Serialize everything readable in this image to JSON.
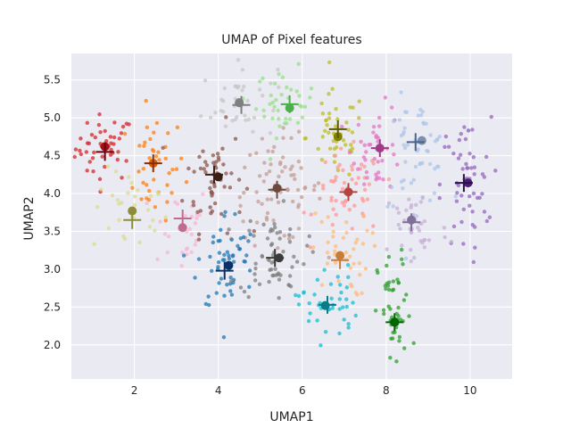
{
  "chart_data": {
    "type": "scatter",
    "title": "UMAP of Pixel features",
    "xlabel": "UMAP1",
    "ylabel": "UMAP2",
    "xlim": [
      0.5,
      11.0
    ],
    "ylim": [
      1.55,
      5.85
    ],
    "xticks": [
      2,
      4,
      6,
      8,
      10
    ],
    "yticks": [
      2.0,
      2.5,
      3.0,
      3.5,
      4.0,
      4.5,
      5.0,
      5.5
    ],
    "background": "#eaeaf2",
    "grid": true,
    "clusters": [
      {
        "color": "#d62728",
        "cx": 1.3,
        "cy": 4.6,
        "sx": 0.35,
        "sy": 0.22,
        "n": 45,
        "centroid": [
          1.3,
          4.62
        ],
        "medoid": [
          1.3,
          4.55
        ],
        "centroid_color": "#a50f15",
        "cross_color": "#67000d"
      },
      {
        "color": "#ff7f0e",
        "cx": 2.5,
        "cy": 4.35,
        "sx": 0.35,
        "sy": 0.35,
        "n": 40,
        "centroid": [
          2.45,
          4.4
        ],
        "medoid": [
          2.45,
          4.4
        ],
        "centroid_color": "#d95f02",
        "cross_color": "#8c2d04"
      },
      {
        "color": "#dbdb8d",
        "cx": 1.9,
        "cy": 3.75,
        "sx": 0.45,
        "sy": 0.28,
        "n": 30,
        "centroid": [
          1.95,
          3.77
        ],
        "medoid": [
          1.95,
          3.65
        ],
        "centroid_color": "#8c8c3f",
        "cross_color": "#8c8c3f"
      },
      {
        "color": "#f7b6d2",
        "cx": 3.1,
        "cy": 3.55,
        "sx": 0.35,
        "sy": 0.3,
        "n": 30,
        "centroid": [
          3.15,
          3.55
        ],
        "medoid": [
          3.15,
          3.67
        ],
        "centroid_color": "#c06c8e",
        "cross_color": "#c06c8e"
      },
      {
        "color": "#8c564b",
        "cx": 3.9,
        "cy": 4.2,
        "sx": 0.35,
        "sy": 0.35,
        "n": 55,
        "centroid": [
          4.0,
          4.22
        ],
        "medoid": [
          3.9,
          4.25
        ],
        "centroid_color": "#3b1f17",
        "cross_color": "#3b1f17"
      },
      {
        "color": "#c7c7c7",
        "cx": 4.5,
        "cy": 5.2,
        "sx": 0.45,
        "sy": 0.25,
        "n": 40,
        "centroid": [
          4.5,
          5.2
        ],
        "medoid": [
          4.55,
          5.17
        ],
        "centroid_color": "#7f7f7f",
        "cross_color": "#7f7f7f"
      },
      {
        "color": "#98df8a",
        "cx": 5.6,
        "cy": 5.2,
        "sx": 0.35,
        "sy": 0.22,
        "n": 40,
        "centroid": [
          5.7,
          5.13
        ],
        "medoid": [
          5.7,
          5.18
        ],
        "centroid_color": "#4daf4a",
        "cross_color": "#4daf4a"
      },
      {
        "color": "#c49c94",
        "cx": 5.4,
        "cy": 4.05,
        "sx": 0.55,
        "sy": 0.35,
        "n": 75,
        "centroid": [
          5.4,
          4.07
        ],
        "medoid": [
          5.4,
          4.05
        ],
        "centroid_color": "#6b4a3f",
        "cross_color": "#6b4a3f"
      },
      {
        "color": "#bcbd22",
        "cx": 6.8,
        "cy": 4.75,
        "sx": 0.35,
        "sy": 0.3,
        "n": 45,
        "centroid": [
          6.85,
          4.75
        ],
        "medoid": [
          6.85,
          4.85
        ],
        "centroid_color": "#808000",
        "cross_color": "#5a5a00"
      },
      {
        "color": "#ff9896",
        "cx": 7.1,
        "cy": 4.0,
        "sx": 0.4,
        "sy": 0.28,
        "n": 55,
        "centroid": [
          7.1,
          4.02
        ],
        "medoid": [
          7.1,
          4.02
        ],
        "centroid_color": "#b5443f",
        "cross_color": "#b5443f"
      },
      {
        "color": "#e377c2",
        "cx": 7.8,
        "cy": 4.6,
        "sx": 0.3,
        "sy": 0.28,
        "n": 40,
        "centroid": [
          7.85,
          4.6
        ],
        "medoid": [
          7.85,
          4.6
        ],
        "centroid_color": "#a33a86",
        "cross_color": "#a33a86"
      },
      {
        "color": "#aec7e8",
        "cx": 8.7,
        "cy": 4.55,
        "sx": 0.4,
        "sy": 0.35,
        "n": 55,
        "centroid": [
          8.85,
          4.7
        ],
        "medoid": [
          8.7,
          4.68
        ],
        "centroid_color": "#7b8fb0",
        "cross_color": "#4a6590"
      },
      {
        "color": "#9467bd",
        "cx": 9.9,
        "cy": 4.1,
        "sx": 0.3,
        "sy": 0.45,
        "n": 55,
        "centroid": [
          9.95,
          4.14
        ],
        "medoid": [
          9.85,
          4.14
        ],
        "centroid_color": "#4a1f73",
        "cross_color": "#2e0f4a"
      },
      {
        "color": "#c5b0d5",
        "cx": 8.7,
        "cy": 3.55,
        "sx": 0.4,
        "sy": 0.3,
        "n": 40,
        "centroid": [
          8.6,
          3.65
        ],
        "medoid": [
          8.6,
          3.62
        ],
        "centroid_color": "#7f7099",
        "cross_color": "#7f7099"
      },
      {
        "color": "#1f77b4",
        "cx": 4.2,
        "cy": 3.1,
        "sx": 0.35,
        "sy": 0.35,
        "n": 55,
        "centroid": [
          4.25,
          3.05
        ],
        "medoid": [
          4.15,
          2.98
        ],
        "centroid_color": "#08306b",
        "cross_color": "#08306b"
      },
      {
        "color": "#7f7f7f",
        "cx": 5.3,
        "cy": 3.2,
        "sx": 0.4,
        "sy": 0.3,
        "n": 60,
        "centroid": [
          5.45,
          3.15
        ],
        "medoid": [
          5.35,
          3.15
        ],
        "centroid_color": "#3a3a3a",
        "cross_color": "#3a3a3a"
      },
      {
        "color": "#ffbb78",
        "cx": 6.9,
        "cy": 3.2,
        "sx": 0.35,
        "sy": 0.28,
        "n": 40,
        "centroid": [
          6.9,
          3.18
        ],
        "medoid": [
          6.9,
          3.12
        ],
        "centroid_color": "#c77d36",
        "cross_color": "#c77d36"
      },
      {
        "color": "#17becf",
        "cx": 6.6,
        "cy": 2.55,
        "sx": 0.35,
        "sy": 0.25,
        "n": 40,
        "centroid": [
          6.55,
          2.52
        ],
        "medoid": [
          6.6,
          2.53
        ],
        "centroid_color": "#0a7a87",
        "cross_color": "#0a7a87"
      },
      {
        "color": "#2ca02c",
        "cx": 8.2,
        "cy": 2.4,
        "sx": 0.2,
        "sy": 0.4,
        "n": 50,
        "centroid": [
          8.2,
          2.3
        ],
        "medoid": [
          8.2,
          2.3
        ],
        "centroid_color": "#006400",
        "cross_color": "#006400"
      }
    ]
  }
}
